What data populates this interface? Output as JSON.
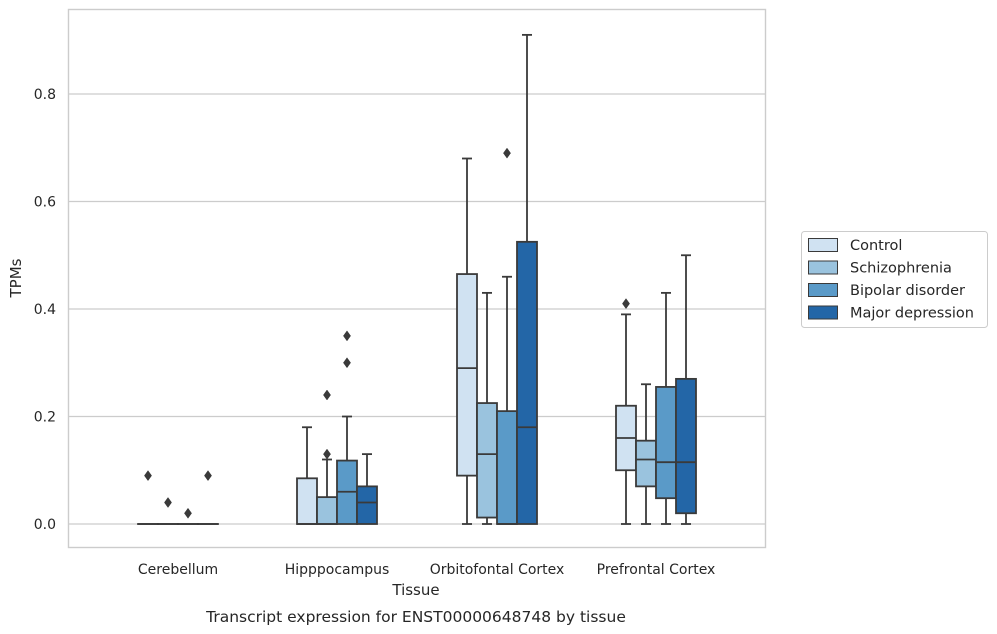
{
  "chart_data": {
    "type": "box",
    "title": "",
    "caption": "Transcript expression for ENST00000648748 by tissue",
    "xlabel": "Tissue",
    "ylabel": "TPMs",
    "ylim": [
      -0.045,
      0.955
    ],
    "yticks": [
      0.0,
      0.2,
      0.4,
      0.6,
      0.8
    ],
    "ytick_labels": [
      "0.0",
      "0.2",
      "0.4",
      "0.6",
      "0.8"
    ],
    "grid": true,
    "legend_position": "right",
    "categories": [
      "Cerebellum",
      "Hipppocampus",
      "Orbitofontal Cortex",
      "Prefrontal Cortex"
    ],
    "series": [
      {
        "name": "Control",
        "color": "#d0e2f2",
        "boxes": [
          {
            "whislo": 0.0,
            "q1": 0.0,
            "med": 0.0,
            "q3": 0.0,
            "whishi": 0.0,
            "fliers": [
              0.09
            ]
          },
          {
            "whislo": 0.0,
            "q1": 0.0,
            "med": 0.0,
            "q3": 0.085,
            "whishi": 0.18,
            "fliers": []
          },
          {
            "whislo": 0.0,
            "q1": 0.09,
            "med": 0.29,
            "q3": 0.465,
            "whishi": 0.68,
            "fliers": []
          },
          {
            "whislo": 0.0,
            "q1": 0.1,
            "med": 0.16,
            "q3": 0.22,
            "whishi": 0.39,
            "fliers": [
              0.41
            ]
          }
        ]
      },
      {
        "name": "Schizophrenia",
        "color": "#9ac3de",
        "boxes": [
          {
            "whislo": 0.0,
            "q1": 0.0,
            "med": 0.0,
            "q3": 0.0,
            "whishi": 0.0,
            "fliers": [
              0.04
            ]
          },
          {
            "whislo": 0.0,
            "q1": 0.0,
            "med": 0.0,
            "q3": 0.05,
            "whishi": 0.12,
            "fliers": [
              0.13,
              0.24
            ]
          },
          {
            "whislo": 0.0,
            "q1": 0.012,
            "med": 0.13,
            "q3": 0.225,
            "whishi": 0.43,
            "fliers": []
          },
          {
            "whislo": 0.0,
            "q1": 0.07,
            "med": 0.12,
            "q3": 0.155,
            "whishi": 0.26,
            "fliers": []
          }
        ]
      },
      {
        "name": "Bipolar disorder",
        "color": "#5a9ac8",
        "boxes": [
          {
            "whislo": 0.0,
            "q1": 0.0,
            "med": 0.0,
            "q3": 0.0,
            "whishi": 0.0,
            "fliers": [
              0.02
            ]
          },
          {
            "whislo": 0.0,
            "q1": 0.0,
            "med": 0.06,
            "q3": 0.118,
            "whishi": 0.2,
            "fliers": [
              0.3,
              0.35
            ]
          },
          {
            "whislo": 0.0,
            "q1": 0.0,
            "med": 0.0,
            "q3": 0.21,
            "whishi": 0.46,
            "fliers": [
              0.69
            ]
          },
          {
            "whislo": 0.0,
            "q1": 0.048,
            "med": 0.115,
            "q3": 0.255,
            "whishi": 0.43,
            "fliers": []
          }
        ]
      },
      {
        "name": "Major depression",
        "color": "#2366a7",
        "boxes": [
          {
            "whislo": 0.0,
            "q1": 0.0,
            "med": 0.0,
            "q3": 0.0,
            "whishi": 0.0,
            "fliers": [
              0.09
            ]
          },
          {
            "whislo": 0.0,
            "q1": 0.0,
            "med": 0.04,
            "q3": 0.07,
            "whishi": 0.13,
            "fliers": []
          },
          {
            "whislo": 0.0,
            "q1": 0.0,
            "med": 0.18,
            "q3": 0.525,
            "whishi": 0.91,
            "fliers": []
          },
          {
            "whislo": 0.0,
            "q1": 0.02,
            "med": 0.115,
            "q3": 0.27,
            "whishi": 0.5,
            "fliers": []
          }
        ]
      }
    ]
  }
}
